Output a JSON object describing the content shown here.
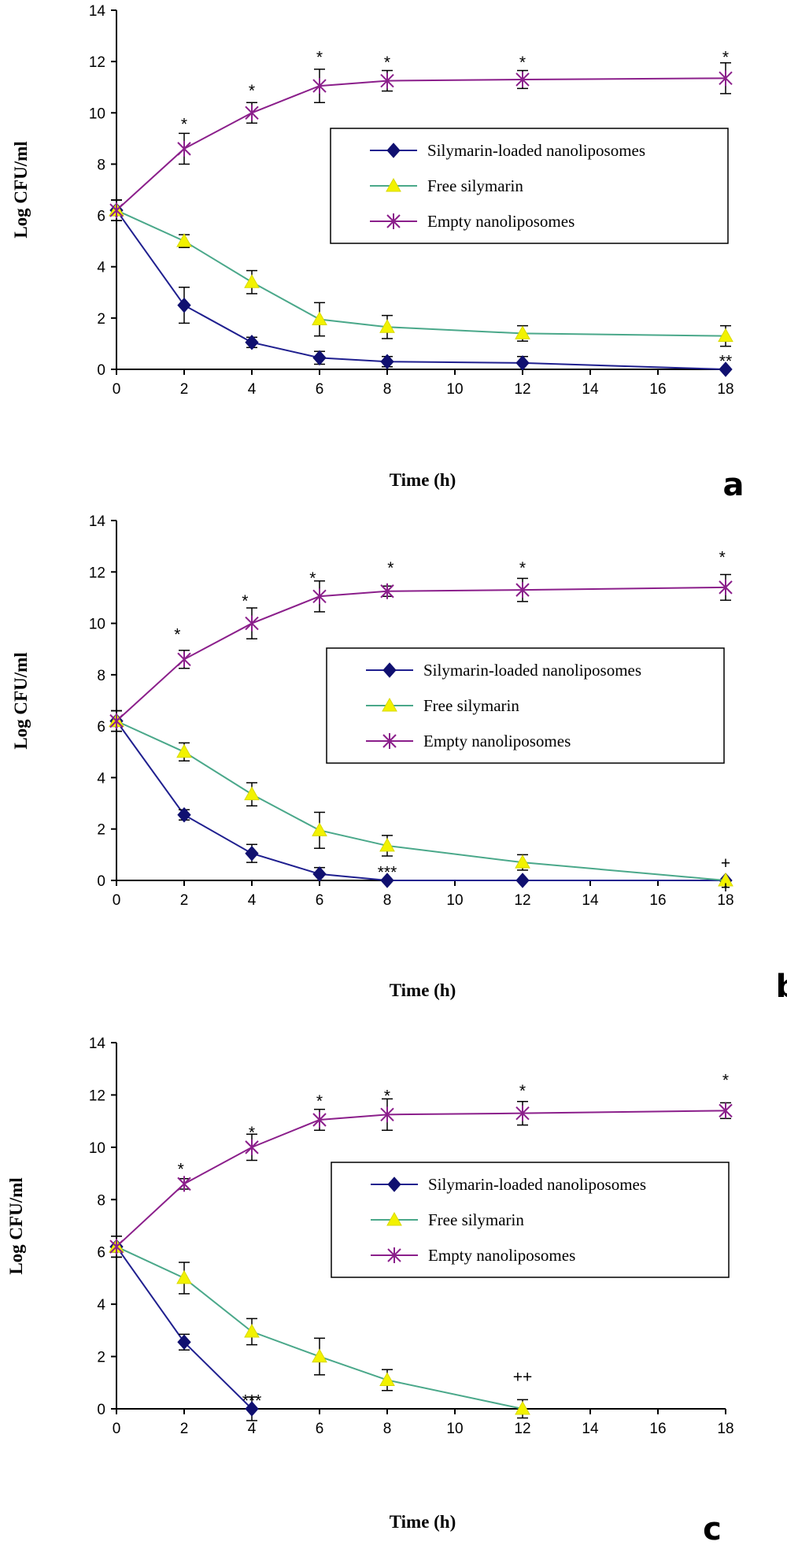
{
  "chart_data": [
    {
      "type": "line",
      "panel_label": "a",
      "xlabel": "Time (h)",
      "ylabel": "Log CFU/ml",
      "x": [
        0,
        2,
        4,
        6,
        8,
        12,
        18
      ],
      "xticks": [
        0,
        2,
        4,
        6,
        8,
        10,
        12,
        14,
        16,
        18
      ],
      "yticks": [
        0,
        2,
        4,
        6,
        8,
        10,
        12,
        14
      ],
      "xlim": [
        0,
        18
      ],
      "ylim": [
        0,
        14
      ],
      "legend_position": "center-right",
      "series": [
        {
          "name": "Silymarin-loaded nanoliposomes",
          "color": "#1f1f8f",
          "marker": "diamond",
          "values": [
            6.2,
            2.5,
            1.05,
            0.45,
            0.3,
            0.25,
            0.0
          ],
          "errors": [
            0.4,
            0.7,
            0.2,
            0.25,
            0.2,
            0.25,
            0.0
          ]
        },
        {
          "name": "Free silymarin",
          "color": "#4aa88a",
          "marker": "triangle",
          "values": [
            6.2,
            5.0,
            3.4,
            1.95,
            1.65,
            1.4,
            1.3
          ],
          "errors": [
            0.4,
            0.25,
            0.45,
            0.65,
            0.45,
            0.3,
            0.4
          ]
        },
        {
          "name": "Empty nanoliposomes",
          "color": "#8b1f8b",
          "marker": "star",
          "values": [
            6.2,
            8.6,
            10.0,
            11.05,
            11.25,
            11.3,
            11.35
          ],
          "errors": [
            0.4,
            0.6,
            0.4,
            0.65,
            0.4,
            0.35,
            0.6
          ]
        }
      ],
      "annotations": [
        {
          "text": "*",
          "x": 2,
          "y": 9.6
        },
        {
          "text": "*",
          "x": 4,
          "y": 10.9
        },
        {
          "text": "*",
          "x": 6,
          "y": 12.2
        },
        {
          "text": "*",
          "x": 8,
          "y": 12.0
        },
        {
          "text": "*",
          "x": 12,
          "y": 12.0
        },
        {
          "text": "*",
          "x": 18,
          "y": 12.2
        },
        {
          "text": "**",
          "x": 18,
          "y": 0.35
        }
      ]
    },
    {
      "type": "line",
      "panel_label": "b",
      "xlabel": "Time (h)",
      "ylabel": "Log CFU/ml",
      "x": [
        0,
        2,
        4,
        6,
        8,
        12,
        18
      ],
      "xticks": [
        0,
        2,
        4,
        6,
        8,
        10,
        12,
        14,
        16,
        18
      ],
      "yticks": [
        0,
        2,
        4,
        6,
        8,
        10,
        12,
        14
      ],
      "xlim": [
        0,
        18
      ],
      "ylim": [
        0,
        14
      ],
      "legend_position": "center-right",
      "series": [
        {
          "name": "Silymarin-loaded nanoliposomes",
          "color": "#1f1f8f",
          "marker": "diamond",
          "values": [
            6.2,
            2.55,
            1.05,
            0.25,
            0.0,
            0.0,
            0.0
          ],
          "errors": [
            0.4,
            0.2,
            0.35,
            0.25,
            0.0,
            0.0,
            0.0
          ]
        },
        {
          "name": "Free silymarin",
          "color": "#4aa88a",
          "marker": "triangle",
          "values": [
            6.2,
            5.0,
            3.35,
            1.95,
            1.35,
            0.7,
            0.0
          ],
          "errors": [
            0.4,
            0.35,
            0.45,
            0.7,
            0.4,
            0.3,
            0.0
          ]
        },
        {
          "name": "Empty nanoliposomes",
          "color": "#8b1f8b",
          "marker": "star",
          "values": [
            6.2,
            8.6,
            10.0,
            11.05,
            11.25,
            11.3,
            11.4
          ],
          "errors": [
            0.4,
            0.35,
            0.6,
            0.6,
            0.2,
            0.45,
            0.5
          ]
        }
      ],
      "annotations": [
        {
          "text": "*",
          "x": 1.8,
          "y": 9.6
        },
        {
          "text": "*",
          "x": 3.8,
          "y": 10.9
        },
        {
          "text": "*",
          "x": 5.8,
          "y": 11.8
        },
        {
          "text": "*",
          "x": 8.1,
          "y": 12.2
        },
        {
          "text": "*",
          "x": 12,
          "y": 12.2
        },
        {
          "text": "*",
          "x": 17.9,
          "y": 12.6
        },
        {
          "text": "***",
          "x": 8,
          "y": 0.35
        },
        {
          "text": "+",
          "x": 18,
          "y": 0.7
        },
        {
          "text": "+",
          "x": 18,
          "y": -0.25
        }
      ]
    },
    {
      "type": "line",
      "panel_label": "c",
      "xlabel": "Time (h)",
      "ylabel": "Log CFU/ml",
      "x": [
        0,
        2,
        4,
        6,
        8,
        12,
        18
      ],
      "xticks": [
        0,
        2,
        4,
        6,
        8,
        10,
        12,
        14,
        16,
        18
      ],
      "yticks": [
        0,
        2,
        4,
        6,
        8,
        10,
        12,
        14
      ],
      "xlim": [
        0,
        18
      ],
      "ylim": [
        0,
        14
      ],
      "legend_position": "center-right",
      "series": [
        {
          "name": "Silymarin-loaded nanoliposomes",
          "color": "#1f1f8f",
          "marker": "diamond",
          "values": [
            6.2,
            2.55,
            0.0,
            null,
            null,
            null,
            null
          ],
          "errors": [
            0.4,
            0.3,
            0.45,
            0,
            0,
            0,
            0
          ]
        },
        {
          "name": "Free silymarin",
          "color": "#4aa88a",
          "marker": "triangle",
          "values": [
            6.2,
            5.0,
            2.95,
            2.0,
            1.1,
            0.0,
            null
          ],
          "errors": [
            0.4,
            0.6,
            0.5,
            0.7,
            0.4,
            0.35,
            0
          ]
        },
        {
          "name": "Empty nanoliposomes",
          "color": "#8b1f8b",
          "marker": "star",
          "values": [
            6.2,
            8.6,
            10.0,
            11.05,
            11.25,
            11.3,
            11.4
          ],
          "errors": [
            0.4,
            0.2,
            0.5,
            0.4,
            0.6,
            0.45,
            0.3
          ]
        }
      ],
      "annotations": [
        {
          "text": "*",
          "x": 1.9,
          "y": 9.2
        },
        {
          "text": "*",
          "x": 4.0,
          "y": 10.6
        },
        {
          "text": "*",
          "x": 6.0,
          "y": 11.8
        },
        {
          "text": "*",
          "x": 8.0,
          "y": 12.0
        },
        {
          "text": "*",
          "x": 12.0,
          "y": 12.2
        },
        {
          "text": "*",
          "x": 18.0,
          "y": 12.6
        },
        {
          "text": "***",
          "x": 4.0,
          "y": 0.35
        },
        {
          "text": "++",
          "x": 12.0,
          "y": 1.25
        }
      ]
    }
  ]
}
